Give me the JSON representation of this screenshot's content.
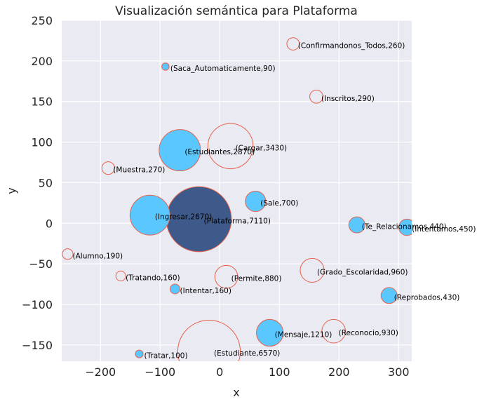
{
  "chart_data": {
    "type": "scatter",
    "title": "Visualización semántica para Plataforma",
    "xlabel": "x",
    "ylabel": "y",
    "xlim": [
      -265,
      322
    ],
    "ylim": [
      -170,
      250
    ],
    "xticks": [
      "−200",
      "−100",
      "0",
      "100",
      "200",
      "300"
    ],
    "xtick_values": [
      -200,
      -100,
      0,
      100,
      200,
      300
    ],
    "yticks": [
      "250",
      "200",
      "150",
      "100",
      "50",
      "0",
      "−50",
      "−100",
      "−150"
    ],
    "ytick_values": [
      250,
      200,
      150,
      100,
      50,
      0,
      -50,
      -100,
      -150
    ],
    "grid": true,
    "colors": {
      "background": "#EAEAF2",
      "grid": "#FFFFFF",
      "filled": "#5AC8FF",
      "center": "#3D5A8A",
      "outline": "#E8604C",
      "empty": "#EAEAF2"
    },
    "points": [
      {
        "label": "(Confirmandonos_Todos,260)",
        "x": 123,
        "y": 221,
        "size": 260,
        "style": "empty"
      },
      {
        "label": "(Saca_Automaticamente,90)",
        "x": -91,
        "y": 193,
        "size": 90,
        "style": "filled"
      },
      {
        "label": "(Inscritos,290)",
        "x": 162,
        "y": 156,
        "size": 290,
        "style": "empty"
      },
      {
        "label": "(Cargar,3430)",
        "x": 18,
        "y": 95,
        "size": 3430,
        "style": "empty"
      },
      {
        "label": "(Estudiantes,2870)",
        "x": -67,
        "y": 90,
        "size": 2870,
        "style": "filled"
      },
      {
        "label": "(Muestra,270)",
        "x": -187,
        "y": 68,
        "size": 270,
        "style": "empty"
      },
      {
        "label": "(Sale,700)",
        "x": 60,
        "y": 27,
        "size": 700,
        "style": "filled"
      },
      {
        "label": "(Plataforma,7110)",
        "x": -35,
        "y": 5,
        "size": 7110,
        "style": "center"
      },
      {
        "label": "(Ingresar,2670)",
        "x": -117,
        "y": 10,
        "size": 2670,
        "style": "filled"
      },
      {
        "label": "(Te_Relacionamos,440)",
        "x": 230,
        "y": -2,
        "size": 440,
        "style": "filled"
      },
      {
        "label": "(Intentamos,450)",
        "x": 314,
        "y": -5,
        "size": 450,
        "style": "filled"
      },
      {
        "label": "(Alumno,190)",
        "x": -255,
        "y": -38,
        "size": 190,
        "style": "empty"
      },
      {
        "label": "(Tratando,160)",
        "x": -166,
        "y": -65,
        "size": 160,
        "style": "empty"
      },
      {
        "label": "(Permite,880)",
        "x": 11,
        "y": -66,
        "size": 880,
        "style": "empty"
      },
      {
        "label": "(Grado_Escolaridad,960)",
        "x": 155,
        "y": -58,
        "size": 960,
        "style": "empty"
      },
      {
        "label": "(Intentar,160)",
        "x": -75,
        "y": -81,
        "size": 160,
        "style": "filled"
      },
      {
        "label": "(Reprobados,430)",
        "x": 284,
        "y": -89,
        "size": 430,
        "style": "filled"
      },
      {
        "label": "(Reconocio,930)",
        "x": 191,
        "y": -133,
        "size": 930,
        "style": "empty"
      },
      {
        "label": "(Mensaje,1210)",
        "x": 84,
        "y": -135,
        "size": 1210,
        "style": "filled"
      },
      {
        "label": "(Tratar,100)",
        "x": -135,
        "y": -161,
        "size": 100,
        "style": "filled"
      },
      {
        "label": "(Estudiante,6570)",
        "x": -18,
        "y": -158,
        "size": 6570,
        "style": "empty"
      }
    ]
  }
}
